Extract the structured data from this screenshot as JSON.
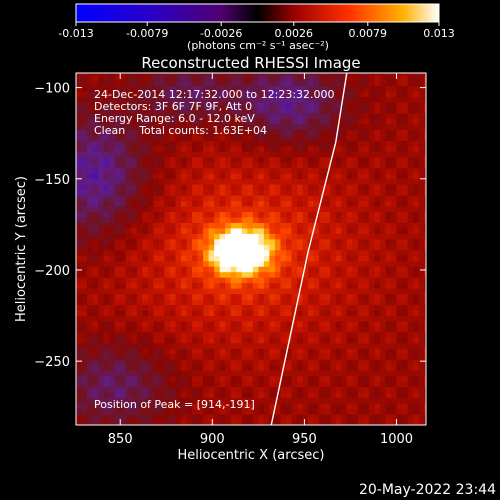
{
  "chart_data": {
    "type": "heatmap",
    "title": "Reconstructed RHESSI Image",
    "xlabel": "Heliocentric X (arcsec)",
    "ylabel": "Heliocentric Y (arcsec)",
    "x_range": [
      826,
      1016
    ],
    "y_range": [
      -285,
      -92
    ],
    "x_ticks": [
      850,
      900,
      950,
      1000
    ],
    "y_ticks": [
      -100,
      -150,
      -200,
      -250
    ],
    "colorbar": {
      "min": -0.013,
      "max": 0.013,
      "ticks": [
        "-0.013",
        "-0.0079",
        "-0.0026",
        "0.0026",
        "0.0079",
        "0.013"
      ],
      "tick_values": [
        -0.013,
        -0.0079,
        -0.0026,
        0.0026,
        0.0079,
        0.013
      ],
      "unit_label": "(photons cm⁻² s⁻¹ asec⁻²)"
    },
    "annotations": [
      "24-Dec-2014 12:17:32.000 to 12:23:32.000",
      "Detectors: 3F 6F 7F 9F, Att 0",
      "Energy Range: 6.0 - 12.0 keV",
      "Clean    Total counts: 1.63E+04"
    ],
    "peak_label": "Position of Peak = [914,-191]",
    "peak_position": [
      914,
      -191
    ],
    "limb_points": [
      [
        932,
        -285
      ],
      [
        952,
        -190
      ],
      [
        967,
        -130
      ],
      [
        973,
        -92
      ]
    ]
  },
  "footer_timestamp": "20-May-2022 23:44",
  "colors": {
    "background": "#000000",
    "foreground": "#ffffff",
    "colormap": [
      "#0000ff",
      "#3a00b0",
      "#5a1a8a",
      "#8a0000",
      "#ff3000",
      "#ffc000",
      "#ffffff"
    ]
  }
}
